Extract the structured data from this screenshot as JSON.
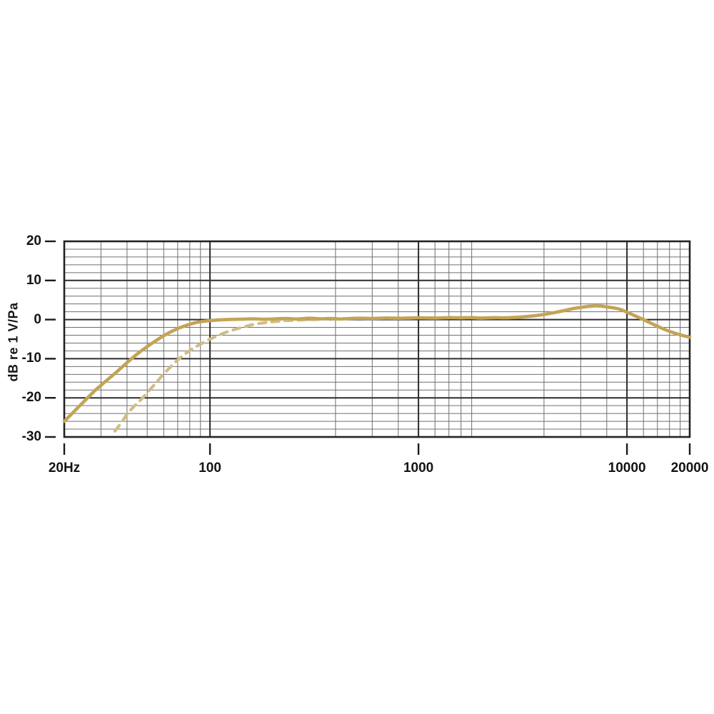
{
  "page": {
    "background": "#ffffff"
  },
  "chart_data": {
    "type": "line",
    "title": "",
    "xlabel": "",
    "ylabel": "dB re 1 V/Pa",
    "x_scale": "log",
    "xlim": [
      20,
      20000
    ],
    "ylim": [
      -30,
      20
    ],
    "y_major_step": 10,
    "y_minor_step": 2,
    "grid": "on",
    "legend": "none",
    "colors": {
      "grid_minor": "#6f6f6f",
      "grid_major": "#2c2c2c",
      "border": "#232323",
      "tick": "#1a1a1a",
      "text": "#141414",
      "curve_solid": "#c3a455",
      "curve_dashed": "#cfbd86"
    },
    "x_ticks": [
      {
        "value": 20,
        "label": "20Hz"
      },
      {
        "value": 100,
        "label": "100"
      },
      {
        "value": 1000,
        "label": "1000"
      },
      {
        "value": 10000,
        "label": "10000"
      },
      {
        "value": 20000,
        "label": "20000"
      }
    ],
    "y_ticks": [
      {
        "value": 20,
        "label": "20"
      },
      {
        "value": 10,
        "label": "10"
      },
      {
        "value": 0,
        "label": "0"
      },
      {
        "value": -10,
        "label": "-10"
      },
      {
        "value": -20,
        "label": "-20"
      },
      {
        "value": -30,
        "label": "-30"
      }
    ],
    "series": [
      {
        "name": "frequency-response-main",
        "style": "solid",
        "color": "#c3a455",
        "width": 4.6,
        "points": [
          [
            20,
            -26.0
          ],
          [
            22,
            -23.8
          ],
          [
            25,
            -20.8
          ],
          [
            28,
            -18.2
          ],
          [
            30,
            -16.8
          ],
          [
            33,
            -14.9
          ],
          [
            36,
            -13.2
          ],
          [
            40,
            -11.0
          ],
          [
            45,
            -8.7
          ],
          [
            50,
            -6.9
          ],
          [
            55,
            -5.4
          ],
          [
            60,
            -4.1
          ],
          [
            65,
            -3.1
          ],
          [
            70,
            -2.3
          ],
          [
            75,
            -1.7
          ],
          [
            80,
            -1.2
          ],
          [
            85,
            -0.8
          ],
          [
            90,
            -0.55
          ],
          [
            100,
            -0.25
          ],
          [
            110,
            -0.1
          ],
          [
            120,
            0.0
          ],
          [
            140,
            0.1
          ],
          [
            160,
            0.2
          ],
          [
            180,
            0.1
          ],
          [
            200,
            0.15
          ],
          [
            230,
            0.3
          ],
          [
            260,
            0.15
          ],
          [
            300,
            0.35
          ],
          [
            340,
            0.2
          ],
          [
            380,
            0.3
          ],
          [
            420,
            0.15
          ],
          [
            470,
            0.3
          ],
          [
            520,
            0.35
          ],
          [
            600,
            0.3
          ],
          [
            700,
            0.4
          ],
          [
            800,
            0.35
          ],
          [
            900,
            0.4
          ],
          [
            1000,
            0.45
          ],
          [
            1200,
            0.4
          ],
          [
            1400,
            0.5
          ],
          [
            1600,
            0.45
          ],
          [
            1800,
            0.5
          ],
          [
            2000,
            0.4
          ],
          [
            2300,
            0.5
          ],
          [
            2600,
            0.45
          ],
          [
            3000,
            0.6
          ],
          [
            3500,
            0.9
          ],
          [
            4000,
            1.3
          ],
          [
            4500,
            1.8
          ],
          [
            5000,
            2.3
          ],
          [
            5500,
            2.8
          ],
          [
            6000,
            3.1
          ],
          [
            6500,
            3.35
          ],
          [
            7000,
            3.5
          ],
          [
            7500,
            3.45
          ],
          [
            8000,
            3.25
          ],
          [
            8500,
            3.05
          ],
          [
            9000,
            2.8
          ],
          [
            9500,
            2.4
          ],
          [
            10000,
            1.9
          ],
          [
            11000,
            0.9
          ],
          [
            12000,
            0.0
          ],
          [
            13000,
            -0.9
          ],
          [
            14000,
            -1.7
          ],
          [
            15000,
            -2.4
          ],
          [
            16000,
            -3.0
          ],
          [
            18000,
            -3.9
          ],
          [
            20000,
            -4.5
          ]
        ]
      },
      {
        "name": "frequency-response-lowcut",
        "style": "dashed",
        "color": "#cfbd86",
        "width": 4.2,
        "dash": [
          10,
          8.5
        ],
        "points": [
          [
            35,
            -28.5
          ],
          [
            38,
            -26.0
          ],
          [
            40,
            -24.2
          ],
          [
            43,
            -22.3
          ],
          [
            46,
            -20.8
          ],
          [
            50,
            -18.7
          ],
          [
            55,
            -16.2
          ],
          [
            60,
            -13.9
          ],
          [
            65,
            -12.0
          ],
          [
            70,
            -10.3
          ],
          [
            75,
            -9.0
          ],
          [
            80,
            -7.9
          ],
          [
            85,
            -7.0
          ],
          [
            90,
            -6.3
          ],
          [
            100,
            -5.0
          ],
          [
            110,
            -4.0
          ],
          [
            120,
            -3.2
          ],
          [
            130,
            -2.6
          ],
          [
            140,
            -2.1
          ],
          [
            160,
            -1.3
          ],
          [
            180,
            -0.85
          ],
          [
            200,
            -0.55
          ],
          [
            230,
            -0.3
          ],
          [
            260,
            -0.15
          ],
          [
            300,
            -0.05
          ],
          [
            340,
            0.05
          ]
        ]
      }
    ]
  }
}
